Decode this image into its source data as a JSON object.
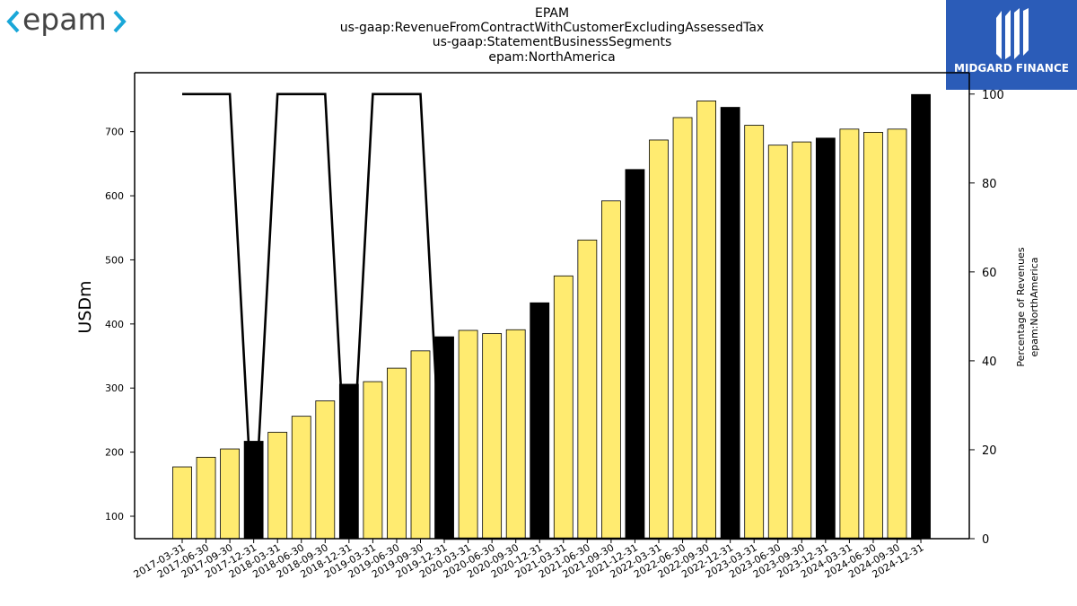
{
  "title_lines": [
    "EPAM",
    "us-gaap:RevenueFromContractWithCustomerExcludingAssessedTax",
    "us-gaap:StatementBusinessSegments",
    "epam:NorthAmerica"
  ],
  "logos": {
    "left_text": "<epam>",
    "right_text": "MIDGARD FINANCE"
  },
  "colors": {
    "bar_regular": "#ffeb70",
    "bar_year_end": "#000000",
    "line": "#000000"
  },
  "chart_data": {
    "type": "bar",
    "categories": [
      "2017-03-31",
      "2017-06-30",
      "2017-09-30",
      "2017-12-31",
      "2018-03-31",
      "2018-06-30",
      "2018-09-30",
      "2018-12-31",
      "2019-03-31",
      "2019-06-30",
      "2019-09-30",
      "2019-12-31",
      "2020-03-31",
      "2020-06-30",
      "2020-09-30",
      "2020-12-31",
      "2021-03-31",
      "2021-06-30",
      "2021-09-30",
      "2021-12-31",
      "2022-03-31",
      "2022-06-30",
      "2022-09-30",
      "2022-12-31",
      "2023-03-31",
      "2023-06-30",
      "2023-09-30",
      "2023-12-31",
      "2024-03-31",
      "2024-06-30",
      "2024-09-30",
      "2024-12-31"
    ],
    "values": [
      177,
      192,
      205,
      217,
      231,
      256,
      280,
      306,
      310,
      331,
      358,
      380,
      390,
      385,
      391,
      433,
      475,
      531,
      592,
      641,
      687,
      722,
      748,
      738,
      710,
      679,
      684,
      690,
      704,
      699,
      704,
      758
    ],
    "line_values": [
      100,
      100,
      100,
      0,
      100,
      100,
      100,
      0,
      100,
      100,
      100,
      0,
      0,
      0,
      0,
      0,
      0,
      0,
      0,
      0,
      0,
      0,
      0,
      0,
      0,
      0,
      0,
      0,
      0,
      0,
      0,
      0
    ],
    "ylabel": "USDm",
    "y2label_lines": [
      "Percentage of Revenues",
      "epam:NorthAmerica"
    ],
    "ylim": [
      65,
      792
    ],
    "y2lim": [
      0,
      104.8
    ],
    "yticks": [
      100,
      200,
      300,
      400,
      500,
      600,
      700
    ],
    "y2ticks": [
      0,
      20,
      40,
      60,
      80,
      100
    ]
  }
}
